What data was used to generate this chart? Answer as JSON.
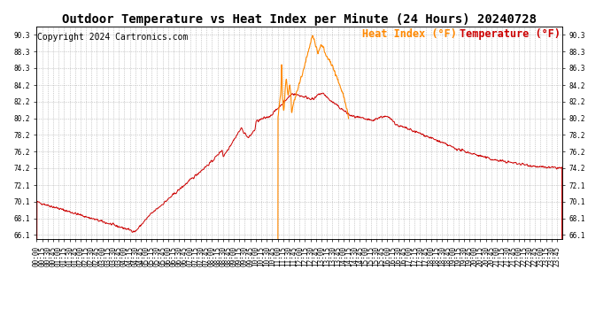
{
  "title": "Outdoor Temperature vs Heat Index per Minute (24 Hours) 20240728",
  "copyright": "Copyright 2024 Cartronics.com",
  "legend_heat": "Heat Index (°F)",
  "legend_temp": "Temperature (°F)",
  "temp_color": "#cc0000",
  "heat_color": "#ff8800",
  "background_color": "#ffffff",
  "grid_color": "#aaaaaa",
  "ylim": [
    65.6,
    91.3
  ],
  "yticks": [
    66.1,
    68.1,
    70.1,
    72.1,
    74.2,
    76.2,
    78.2,
    80.2,
    82.2,
    84.2,
    86.3,
    88.3,
    90.3
  ],
  "total_minutes": 1440,
  "title_fontsize": 10,
  "axis_fontsize": 5.5,
  "legend_fontsize": 8.5,
  "copyright_fontsize": 7.0
}
